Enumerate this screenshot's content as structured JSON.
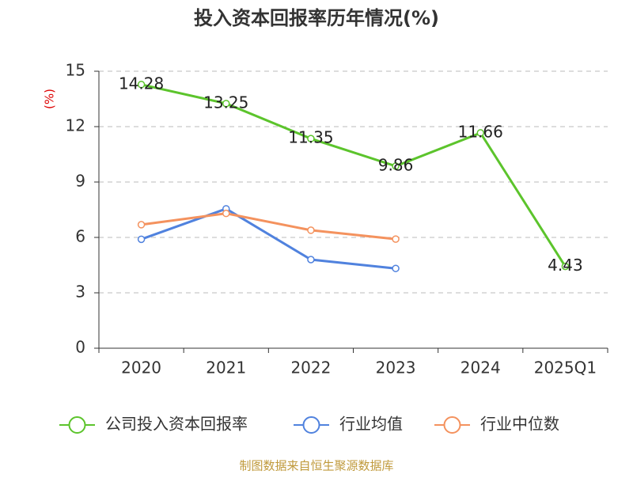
{
  "chart_data": {
    "type": "line",
    "title": "投入资本回报率历年情况(%)",
    "y_label": "(%)",
    "categories": [
      "2020",
      "2021",
      "2022",
      "2023",
      "2024",
      "2025Q1"
    ],
    "series": [
      {
        "name": "公司投入资本回报率",
        "color": "#5cc42c",
        "values": [
          14.28,
          13.25,
          11.35,
          9.86,
          11.66,
          4.43
        ],
        "show_labels": true
      },
      {
        "name": "行业均值",
        "color": "#5082de",
        "values": [
          5.9,
          7.55,
          4.8,
          4.32,
          null,
          null
        ],
        "show_labels": false
      },
      {
        "name": "行业中位数",
        "color": "#f4925e",
        "values": [
          6.69,
          7.3,
          6.39,
          5.91,
          null,
          null
        ],
        "show_labels": false
      }
    ],
    "ylim": [
      0,
      15
    ],
    "yticks": [
      0,
      3,
      6,
      9,
      12,
      15
    ],
    "grid": true,
    "legend": "bottom",
    "source": "制图数据来自恒生聚源数据库"
  }
}
